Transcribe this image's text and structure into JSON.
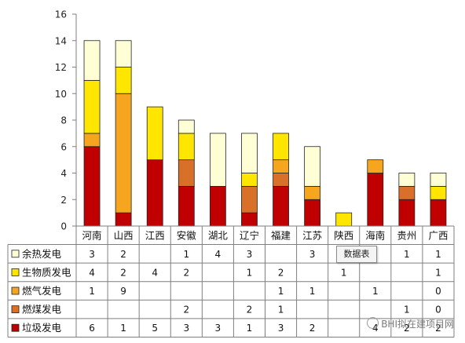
{
  "chart_data": {
    "type": "bar",
    "stacked": true,
    "categories": [
      "河南",
      "山西",
      "江西",
      "安徽",
      "湖北",
      "辽宁",
      "福建",
      "江苏",
      "陕西",
      "海南",
      "贵州",
      "广西"
    ],
    "ylim": [
      0,
      16
    ],
    "yticks": [
      0,
      2,
      4,
      6,
      8,
      10,
      12,
      14,
      16
    ],
    "grid": false,
    "legend": "data-table",
    "series": [
      {
        "name": "余热发电",
        "color": "#FFFFD5",
        "values": [
          3,
          2,
          null,
          1,
          4,
          3,
          null,
          3,
          null,
          null,
          1,
          1
        ]
      },
      {
        "name": "生物质发电",
        "color": "#FFE600",
        "values": [
          4,
          2,
          4,
          2,
          null,
          1,
          2,
          null,
          1,
          null,
          null,
          1
        ]
      },
      {
        "name": "燃气发电",
        "color": "#F5A61E",
        "values": [
          1,
          9,
          null,
          null,
          null,
          null,
          1,
          1,
          null,
          1,
          null,
          0
        ]
      },
      {
        "name": "燃煤发电",
        "color": "#D9702A",
        "values": [
          null,
          null,
          null,
          2,
          null,
          2,
          1,
          null,
          null,
          null,
          1,
          0
        ]
      },
      {
        "name": "垃圾发电",
        "color": "#C00000",
        "values": [
          6,
          1,
          5,
          3,
          3,
          1,
          3,
          2,
          null,
          4,
          2,
          2
        ]
      }
    ]
  },
  "tooltip": {
    "text": "数据表"
  },
  "watermark": {
    "text": "BHI拟在建项目网"
  }
}
